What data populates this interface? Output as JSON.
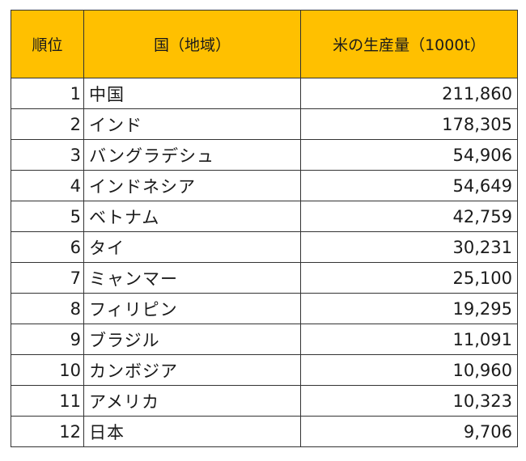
{
  "table": {
    "headers": {
      "rank": "順位",
      "country": "国（地域）",
      "value": "米の生産量（1000t）"
    },
    "rows": [
      {
        "rank": "1",
        "country": "中国",
        "value": "211,860"
      },
      {
        "rank": "2",
        "country": "インド",
        "value": "178,305"
      },
      {
        "rank": "3",
        "country": "バングラデシュ",
        "value": "54,906"
      },
      {
        "rank": "4",
        "country": "インドネシア",
        "value": "54,649"
      },
      {
        "rank": "5",
        "country": "ベトナム",
        "value": "42,759"
      },
      {
        "rank": "6",
        "country": "タイ",
        "value": "30,231"
      },
      {
        "rank": "7",
        "country": "ミャンマー",
        "value": "25,100"
      },
      {
        "rank": "8",
        "country": "フィリピン",
        "value": "19,295"
      },
      {
        "rank": "9",
        "country": "ブラジル",
        "value": "11,091"
      },
      {
        "rank": "10",
        "country": "カンボジア",
        "value": "10,960"
      },
      {
        "rank": "11",
        "country": "アメリカ",
        "value": "10,323"
      },
      {
        "rank": "12",
        "country": "日本",
        "value": "9,706"
      }
    ]
  },
  "colors": {
    "header_background": "#ffc000",
    "border": "#333333"
  }
}
